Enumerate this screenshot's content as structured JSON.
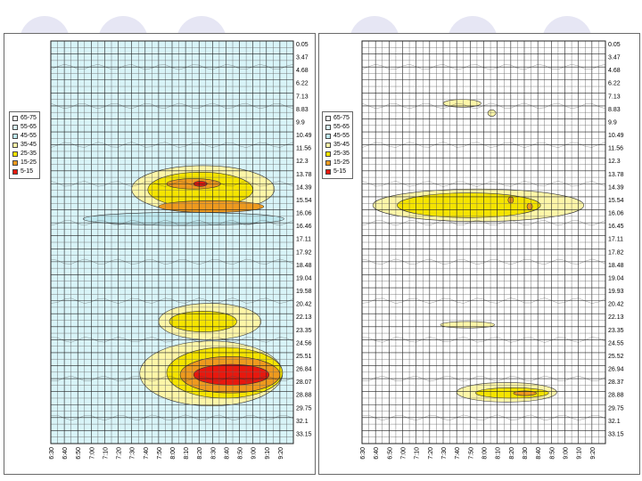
{
  "chart_data": [
    {
      "type": "heatmap",
      "title": "",
      "xlabel": "",
      "ylabel": "",
      "x": [
        "6:30",
        "6:40",
        "6:50",
        "7:00",
        "7:10",
        "7:20",
        "7:30",
        "7:40",
        "7:50",
        "8:00",
        "8:10",
        "8:20",
        "8:30",
        "8:40",
        "8:50",
        "9:00",
        "9:10",
        "9:20"
      ],
      "y": [
        "0.05",
        "3.47",
        "4.68",
        "6.22",
        "7.13",
        "8.83",
        "9.9",
        "10.49",
        "11.56",
        "12.3",
        "13.78",
        "14.39",
        "15.54",
        "16.06",
        "16.46",
        "17.11",
        "17.92",
        "18.48",
        "19.04",
        "19.58",
        "20.42",
        "22.13",
        "23.35",
        "24.56",
        "25.51",
        "26.84",
        "28.07",
        "28.88",
        "29.75",
        "32.1",
        "33.15"
      ],
      "legend": [
        "65-75",
        "55-65",
        "45-55",
        "35-45",
        "25-35",
        "15-25",
        "5-15"
      ],
      "colors": [
        "#ffffff",
        "#d8f4f8",
        "#bfe9f0",
        "#fdf6a8",
        "#f5e400",
        "#ee9a1e",
        "#e8180e",
        "#7a1a10"
      ],
      "background_class": 1,
      "grid": true,
      "legend_position": "left",
      "regions": [
        {
          "level": 3,
          "x": [
            6,
            16.6
          ],
          "y": [
            9.6,
            13.2
          ]
        },
        {
          "level": 4,
          "x": [
            7.2,
            15
          ],
          "y": [
            10.1,
            12.8
          ]
        },
        {
          "level": 5,
          "x": [
            8.6,
            12.6
          ],
          "y": [
            10.6,
            11.4
          ]
        },
        {
          "level": 5,
          "x": [
            8,
            15.8
          ],
          "y": [
            12.3,
            13.2
          ]
        },
        {
          "level": 6,
          "x": [
            10.6,
            11.6
          ],
          "y": [
            10.8,
            11.2
          ]
        },
        {
          "level": 2,
          "x": [
            2.4,
            17.3
          ],
          "y": [
            13.2,
            14.2
          ]
        },
        {
          "level": 3,
          "x": [
            8,
            15.6
          ],
          "y": [
            20.2,
            23
          ]
        },
        {
          "level": 4,
          "x": [
            8.8,
            13.8
          ],
          "y": [
            20.8,
            22.4
          ]
        },
        {
          "level": 3,
          "x": [
            6.6,
            17.2
          ],
          "y": [
            23.1,
            28.1
          ]
        },
        {
          "level": 4,
          "x": [
            8.6,
            17.2
          ],
          "y": [
            23.6,
            27.5
          ]
        },
        {
          "level": 5,
          "x": [
            9.6,
            17
          ],
          "y": [
            24.3,
            27.1
          ]
        },
        {
          "level": 6,
          "x": [
            10.6,
            16.2
          ],
          "y": [
            24.9,
            26.5
          ]
        }
      ]
    },
    {
      "type": "heatmap",
      "title": "",
      "xlabel": "",
      "ylabel": "",
      "x": [
        "6:30",
        "6:40",
        "6:50",
        "7:00",
        "7:10",
        "7:20",
        "7:30",
        "7:40",
        "7:50",
        "8:00",
        "8:10",
        "8:20",
        "8:30",
        "8:40",
        "8:50",
        "9:00",
        "9:10",
        "9:20"
      ],
      "y": [
        "0.05",
        "3.47",
        "4.68",
        "6.22",
        "7.13",
        "8.83",
        "9.9",
        "10.49",
        "11.56",
        "12.3",
        "13.78",
        "14.39",
        "15.54",
        "16.06",
        "16.45",
        "17.11",
        "17.82",
        "18.48",
        "19.04",
        "19.93",
        "20.42",
        "22.13",
        "23.35",
        "24.55",
        "25.52",
        "26.94",
        "28.37",
        "28.88",
        "29.75",
        "32.1",
        "33.15"
      ],
      "legend": [
        "65-75",
        "55-65",
        "45-55",
        "35-45",
        "25-35",
        "15-25",
        "5-15"
      ],
      "colors": [
        "#ffffff",
        "#d8f4f8",
        "#bfe9f0",
        "#fdf6a8",
        "#f5e400",
        "#ee9a1e",
        "#e8180e",
        "#7a1a10"
      ],
      "background_class": 0,
      "grid": true,
      "legend_position": "left",
      "regions": [
        {
          "level": 3,
          "x": [
            0.8,
            16.4
          ],
          "y": [
            11.4,
            13.9
          ]
        },
        {
          "level": 4,
          "x": [
            2.6,
            13.2
          ],
          "y": [
            11.7,
            13.6
          ]
        },
        {
          "level": 5,
          "x": [
            10.8,
            11.2
          ],
          "y": [
            12,
            12.5
          ]
        },
        {
          "level": 5,
          "x": [
            12.2,
            12.6
          ],
          "y": [
            12.5,
            13
          ]
        },
        {
          "level": 3,
          "x": [
            6,
            8.8
          ],
          "y": [
            4.5,
            5.1
          ]
        },
        {
          "level": 3,
          "x": [
            9.3,
            9.9
          ],
          "y": [
            5.3,
            5.8
          ]
        },
        {
          "level": 3,
          "x": [
            5.8,
            9.8
          ],
          "y": [
            21.6,
            22.1
          ]
        },
        {
          "level": 3,
          "x": [
            7,
            14.4
          ],
          "y": [
            26.3,
            27.8
          ]
        },
        {
          "level": 4,
          "x": [
            8.4,
            13.8
          ],
          "y": [
            26.7,
            27.5
          ]
        },
        {
          "level": 5,
          "x": [
            11.2,
            12.9
          ],
          "y": [
            26.95,
            27.3
          ]
        }
      ]
    }
  ]
}
